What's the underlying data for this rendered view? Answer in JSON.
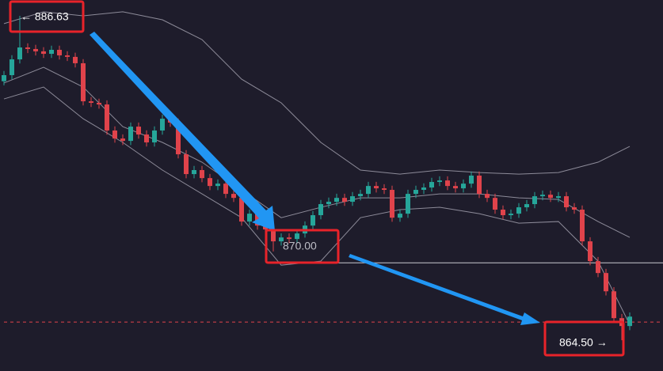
{
  "chart_data": {
    "type": "candlestick",
    "up_color": "#26a69a",
    "down_color": "#e0434b",
    "band_color": "#8d8b99",
    "ylim": [
      860.96,
      887.77
    ],
    "open": [
      881.9,
      882.34,
      883.48,
      884.34,
      884.23,
      884.06,
      883.88,
      884.17,
      883.77,
      883.66,
      883.2,
      880.45,
      880.34,
      880.22,
      878.34,
      877.76,
      877.59,
      878.62,
      878.05,
      877.48,
      878.34,
      879.19,
      878.91,
      876.62,
      875.19,
      875.48,
      874.9,
      874.33,
      874.5,
      873.76,
      873.47,
      871.76,
      872.33,
      871.47,
      871.19,
      870.33,
      870.61,
      870.5,
      870.9,
      871.47,
      872.22,
      873.02,
      873.19,
      873.47,
      873.19,
      873.59,
      873.76,
      874.33,
      874.16,
      874.05,
      872.04,
      872.33,
      873.76,
      874.05,
      874.22,
      874.62,
      874.73,
      874.33,
      874.16,
      874.5,
      875.08,
      873.76,
      873.47,
      872.62,
      872.22,
      872.33,
      872.79,
      873.02,
      873.59,
      873.7,
      873.47,
      873.59,
      872.79,
      872.62,
      870.33,
      868.9,
      868.04,
      866.72,
      864.78,
      864.21
    ],
    "high": [
      882.64,
      883.78,
      886.63,
      884.64,
      884.53,
      884.36,
      884.47,
      884.47,
      884.07,
      883.96,
      883.5,
      880.75,
      880.64,
      880.52,
      878.64,
      878.06,
      878.92,
      878.92,
      878.35,
      878.64,
      879.49,
      879.49,
      879.21,
      876.92,
      875.78,
      875.78,
      875.2,
      874.8,
      874.8,
      874.06,
      873.77,
      872.63,
      872.63,
      871.77,
      871.49,
      870.91,
      870.91,
      871.2,
      871.77,
      872.52,
      873.32,
      873.49,
      873.77,
      873.77,
      873.89,
      874.06,
      874.63,
      874.63,
      874.46,
      874.35,
      872.63,
      874.06,
      874.35,
      874.52,
      874.92,
      875.03,
      875.03,
      874.63,
      874.8,
      875.38,
      875.38,
      874.06,
      873.77,
      872.92,
      872.63,
      873.09,
      873.32,
      873.89,
      874.0,
      874.0,
      873.89,
      873.89,
      873.09,
      872.92,
      870.63,
      869.2,
      868.34,
      867.02,
      865.08,
      865.19
    ],
    "low": [
      881.6,
      882.04,
      883.18,
      883.93,
      883.76,
      883.58,
      883.58,
      883.47,
      883.36,
      882.9,
      880.15,
      880.04,
      879.92,
      878.04,
      877.46,
      877.29,
      877.29,
      877.75,
      877.18,
      877.18,
      878.04,
      878.61,
      876.32,
      874.89,
      874.89,
      874.6,
      874.03,
      874.03,
      873.46,
      873.17,
      871.46,
      871.46,
      871.17,
      870.89,
      869.6,
      870.03,
      870.2,
      870.2,
      870.6,
      871.17,
      871.92,
      872.72,
      872.89,
      872.89,
      872.89,
      873.29,
      873.46,
      873.86,
      873.75,
      871.74,
      871.74,
      872.03,
      873.46,
      873.75,
      873.92,
      874.32,
      874.03,
      873.86,
      873.86,
      874.2,
      873.46,
      873.17,
      872.32,
      871.92,
      871.92,
      872.03,
      872.49,
      872.72,
      873.29,
      873.17,
      873.17,
      872.49,
      872.32,
      870.03,
      868.6,
      867.74,
      866.42,
      864.48,
      863.18,
      863.91
    ],
    "close": [
      882.34,
      883.48,
      884.34,
      884.23,
      884.06,
      883.88,
      884.17,
      883.77,
      883.66,
      883.2,
      880.45,
      880.34,
      880.22,
      878.34,
      877.76,
      877.59,
      878.62,
      878.05,
      877.48,
      878.34,
      879.19,
      878.91,
      876.62,
      875.19,
      875.48,
      874.9,
      874.33,
      874.5,
      873.76,
      873.47,
      871.76,
      872.33,
      871.47,
      871.19,
      870.33,
      870.61,
      870.5,
      870.9,
      871.47,
      872.22,
      873.02,
      873.19,
      873.47,
      873.19,
      873.59,
      873.76,
      874.33,
      874.16,
      874.05,
      872.04,
      872.33,
      873.76,
      874.05,
      874.22,
      874.62,
      874.73,
      874.33,
      874.16,
      874.5,
      875.08,
      873.76,
      873.47,
      872.62,
      872.22,
      872.33,
      872.79,
      873.02,
      873.59,
      873.7,
      873.47,
      873.59,
      872.79,
      872.62,
      870.33,
      868.9,
      868.04,
      866.72,
      864.78,
      864.21,
      864.89
    ],
    "bands": {
      "x": [
        0,
        5,
        10,
        15,
        20,
        25,
        30,
        35,
        40,
        45,
        50,
        55,
        60,
        65,
        70,
        75,
        79
      ],
      "upper": [
        886.06,
        886.92,
        886.63,
        886.92,
        886.34,
        884.91,
        882.05,
        880.34,
        877.48,
        875.48,
        875.19,
        875.48,
        875.3,
        875.19,
        875.3,
        876.05,
        877.19
      ],
      "middle": [
        881.77,
        882.91,
        881.48,
        878.62,
        877.48,
        876.05,
        874.05,
        872.04,
        872.79,
        873.47,
        873.47,
        873.76,
        873.76,
        873.47,
        873.36,
        871.76,
        870.62
      ],
      "lower": [
        880.62,
        881.48,
        879.19,
        877.48,
        875.48,
        873.76,
        872.04,
        868.61,
        868.9,
        872.04,
        872.62,
        872.79,
        872.33,
        871.64,
        871.76,
        868.9,
        864.32
      ]
    },
    "levels": [
      {
        "value": 868.78,
        "from": 42,
        "color": "#c8c8d0",
        "style": "solid"
      },
      {
        "value": 864.5,
        "from": 0,
        "color": "#e0434b",
        "style": "dashed"
      }
    ],
    "annotations": [
      "← 886.63",
      "870.00",
      "864.50 →"
    ]
  }
}
